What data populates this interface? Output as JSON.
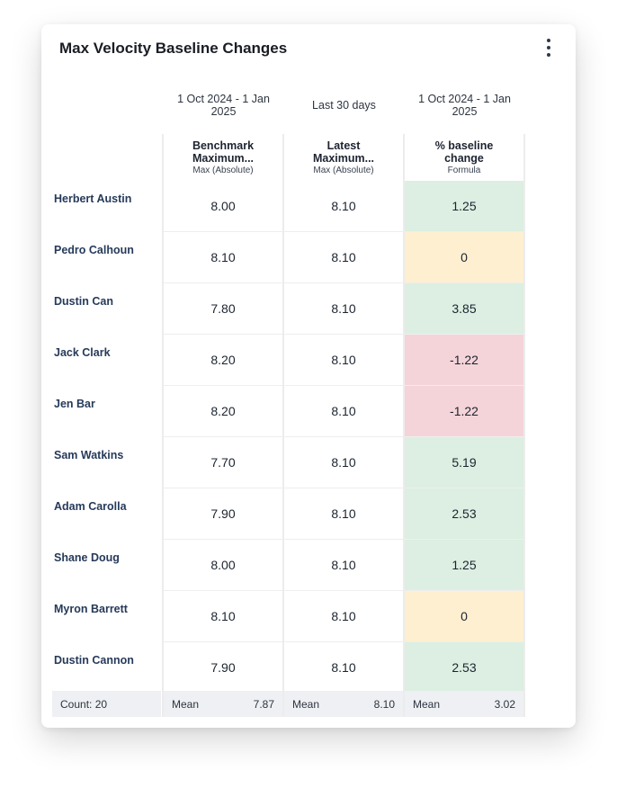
{
  "widget": {
    "title": "Max Velocity Baseline Changes",
    "menu_icon": "kebab-menu-icon"
  },
  "columns": [
    {
      "period": "1 Oct 2024 - 1 Jan 2025",
      "header": "Benchmark\nMaximum...",
      "subheader": "Max (Absolute)"
    },
    {
      "period": "Last 30 days",
      "header": "Latest\nMaximum...",
      "subheader": "Max (Absolute)"
    },
    {
      "period": "1 Oct 2024 - 1 Jan 2025",
      "header": "% baseline\nchange",
      "subheader": "Formula"
    }
  ],
  "rows": [
    {
      "name": "Herbert Austin",
      "benchmark": "8.00",
      "latest": "8.10",
      "change": "1.25",
      "status": "positive"
    },
    {
      "name": "Pedro Calhoun",
      "benchmark": "8.10",
      "latest": "8.10",
      "change": "0",
      "status": "neutral"
    },
    {
      "name": "Dustin Can",
      "benchmark": "7.80",
      "latest": "8.10",
      "change": "3.85",
      "status": "positive"
    },
    {
      "name": "Jack Clark",
      "benchmark": "8.20",
      "latest": "8.10",
      "change": "-1.22",
      "status": "negative"
    },
    {
      "name": "Jen Bar",
      "benchmark": "8.20",
      "latest": "8.10",
      "change": "-1.22",
      "status": "negative"
    },
    {
      "name": "Sam Watkins",
      "benchmark": "7.70",
      "latest": "8.10",
      "change": "5.19",
      "status": "positive"
    },
    {
      "name": "Adam Carolla",
      "benchmark": "7.90",
      "latest": "8.10",
      "change": "2.53",
      "status": "positive"
    },
    {
      "name": "Shane Doug",
      "benchmark": "8.00",
      "latest": "8.10",
      "change": "1.25",
      "status": "positive"
    },
    {
      "name": "Myron Barrett",
      "benchmark": "8.10",
      "latest": "8.10",
      "change": "0",
      "status": "neutral"
    },
    {
      "name": "Dustin Cannon",
      "benchmark": "7.90",
      "latest": "8.10",
      "change": "2.53",
      "status": "positive"
    }
  ],
  "status_colors": {
    "positive": "#dcefe2",
    "neutral": "#fdefd0",
    "negative": "#f4d4d9"
  },
  "footer": {
    "count": "Count: 20",
    "stats": [
      {
        "label": "Mean",
        "value": "7.87"
      },
      {
        "label": "Mean",
        "value": "8.10"
      },
      {
        "label": "Mean",
        "value": "3.02"
      }
    ]
  }
}
